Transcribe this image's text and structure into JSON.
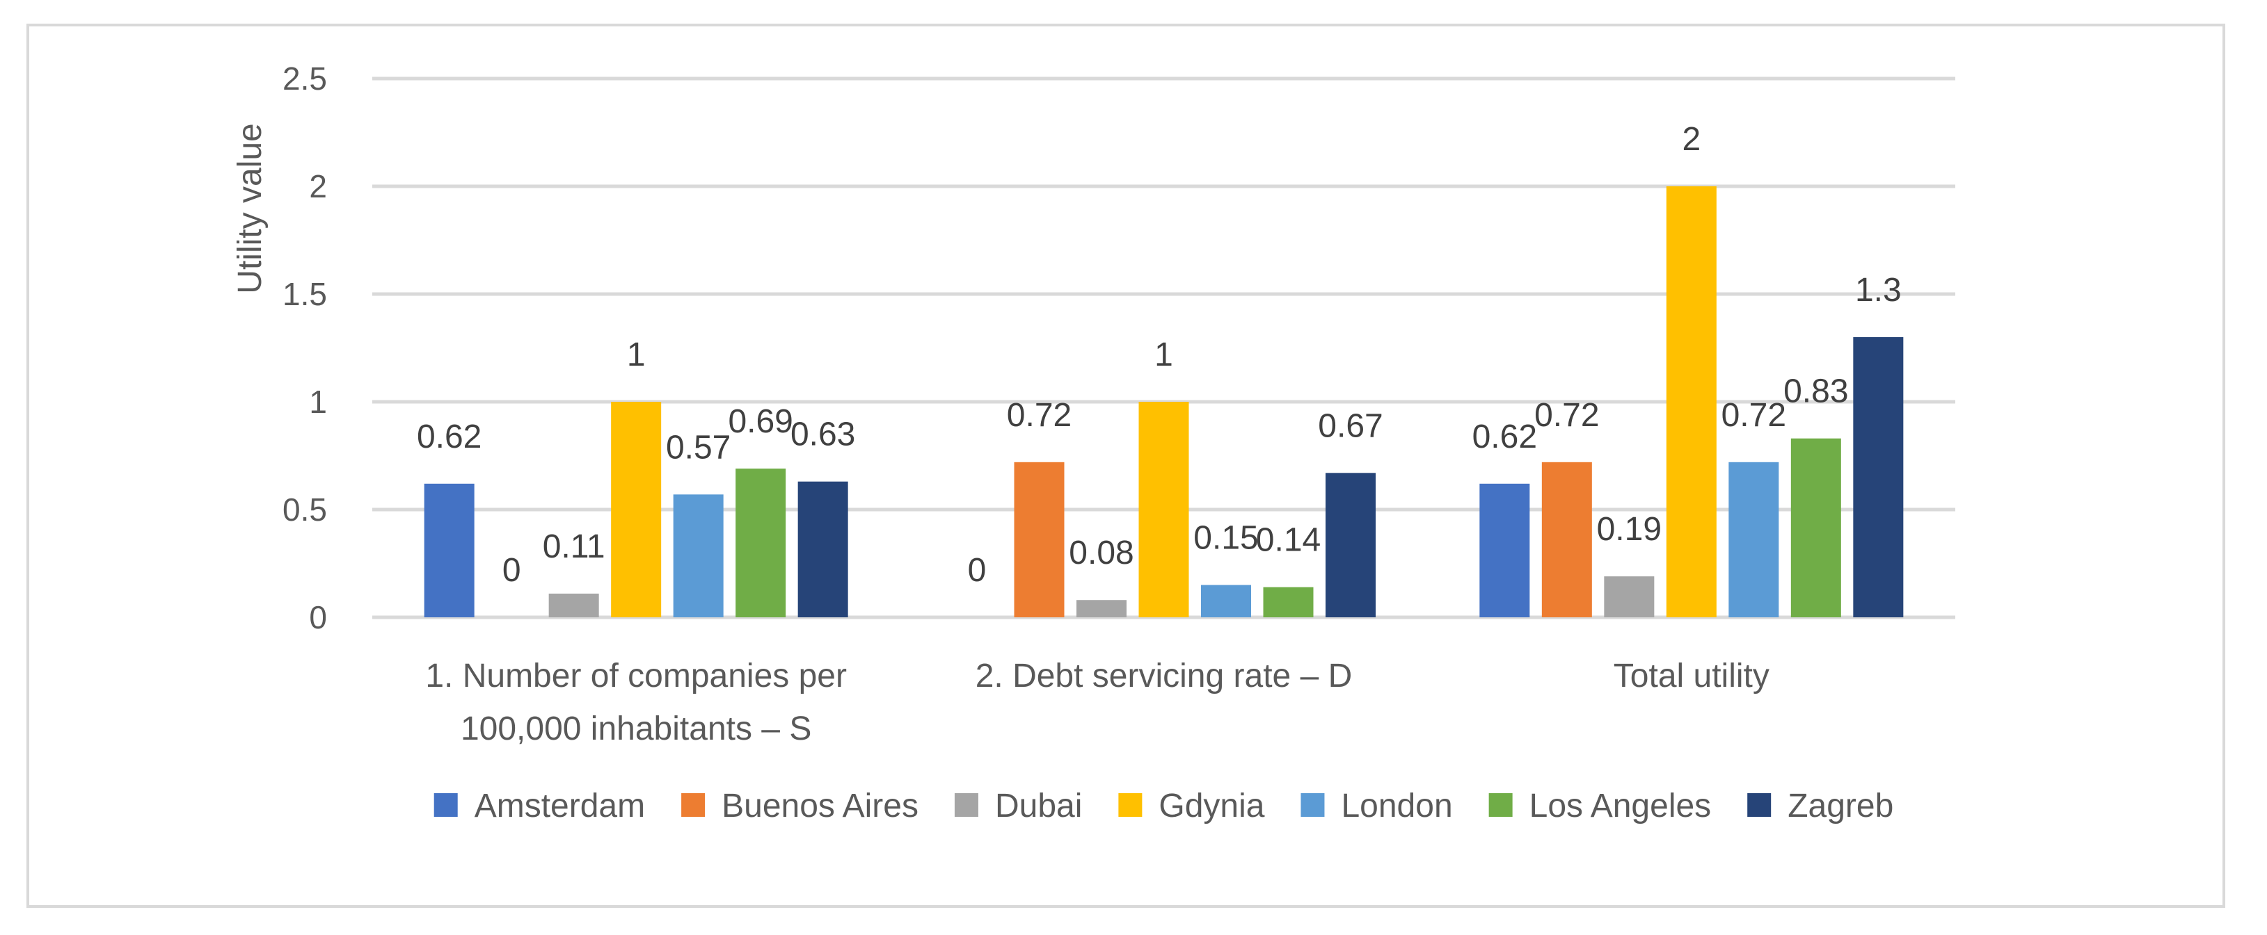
{
  "chart_data": {
    "type": "bar",
    "title": "",
    "xlabel": "",
    "ylabel": "Utility value",
    "ylim": [
      0,
      2.5
    ],
    "yticks": [
      "0",
      "0.5",
      "1",
      "1.5",
      "2",
      "2.5"
    ],
    "grid": true,
    "legend_position": "bottom",
    "categories": [
      [
        "1. Number of companies per",
        "100,000 inhabitants – S"
      ],
      [
        "2. Debt servicing rate – D"
      ],
      [
        "Total utility"
      ]
    ],
    "series": [
      {
        "name": "Amsterdam",
        "color": "#4472C4",
        "values": [
          0.62,
          0,
          0.62
        ],
        "labels": [
          "0.62",
          "0",
          "0.62"
        ]
      },
      {
        "name": "Buenos Aires",
        "color": "#ED7D31",
        "values": [
          0,
          0.72,
          0.72
        ],
        "labels": [
          "0",
          "0.72",
          "0.72"
        ]
      },
      {
        "name": "Dubai",
        "color": "#A5A5A5",
        "values": [
          0.11,
          0.08,
          0.19
        ],
        "labels": [
          "0.11",
          "0.08",
          "0.19"
        ]
      },
      {
        "name": "Gdynia",
        "color": "#FFC000",
        "values": [
          1,
          1,
          2
        ],
        "labels": [
          "1",
          "1",
          "2"
        ]
      },
      {
        "name": "London",
        "color": "#5B9BD5",
        "values": [
          0.57,
          0.15,
          0.72
        ],
        "labels": [
          "0.57",
          "0.15",
          "0.72"
        ]
      },
      {
        "name": "Los Angeles",
        "color": "#70AD47",
        "values": [
          0.69,
          0.14,
          0.83
        ],
        "labels": [
          "0.69",
          "0.14",
          "0.83"
        ]
      },
      {
        "name": "Zagreb",
        "color": "#264478",
        "values": [
          0.63,
          0.67,
          1.3
        ],
        "labels": [
          "0.63",
          "0.67",
          "1.3"
        ]
      }
    ]
  }
}
